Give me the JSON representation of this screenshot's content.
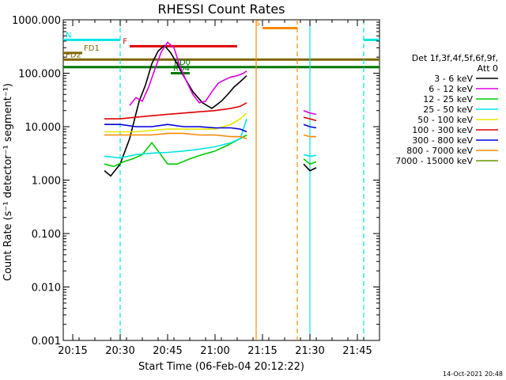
{
  "chart_data": {
    "type": "line",
    "title": "RHESSI Count Rates",
    "xlabel": "Start Time (06-Feb-04 20:12:22)",
    "ylabel": "Count Rate (s⁻¹ detector⁻¹ segment⁻¹)",
    "y_scale": "log",
    "xlim": [
      "20:12",
      "21:52"
    ],
    "ylim": [
      0.001,
      1000
    ],
    "x_ticks": [
      "20:15",
      "20:30",
      "20:45",
      "21:00",
      "21:15",
      "21:30",
      "21:45"
    ],
    "y_ticks": [
      "0.001",
      "0.010",
      "0.100",
      "1.000",
      "10.000",
      "100.000",
      "1000.000"
    ],
    "timestamp": "14-Oct-2021 20:48",
    "legend": {
      "header": "Det 1f,3f,4f,5f,6f,9f,",
      "header2": "Att 0",
      "entries": [
        {
          "label": "3 - 6 keV",
          "color": "#000000"
        },
        {
          "label": "6 - 12 keV",
          "color": "#e000e0"
        },
        {
          "label": "12 - 25 keV",
          "color": "#00cc00"
        },
        {
          "label": "25 - 50 keV",
          "color": "#00e5e5"
        },
        {
          "label": "50 - 100 keV",
          "color": "#e5e500"
        },
        {
          "label": "100 - 300 keV",
          "color": "#e00000"
        },
        {
          "label": "300 - 800 keV",
          "color": "#0000dd"
        },
        {
          "label": "800 - 7000 keV",
          "color": "#ff8800"
        },
        {
          "label": "7000 - 15000 keV",
          "color": "#669900"
        }
      ]
    },
    "series": [
      {
        "name": "3 - 6 keV",
        "color": "#000000",
        "segments": [
          [
            [
              "20:25",
              1.5
            ],
            [
              "20:27",
              1.2
            ],
            [
              "20:30",
              2.0
            ],
            [
              "20:33",
              6
            ],
            [
              "20:36",
              30
            ],
            [
              "20:38",
              60
            ],
            [
              "20:40",
              150
            ],
            [
              "20:42",
              260
            ],
            [
              "20:44",
              330
            ],
            [
              "20:46",
              240
            ],
            [
              "20:48",
              150
            ],
            [
              "20:50",
              90
            ],
            [
              "20:53",
              45
            ],
            [
              "20:56",
              28
            ],
            [
              "20:59",
              22
            ],
            [
              "21:02",
              30
            ],
            [
              "21:04",
              40
            ],
            [
              "21:06",
              55
            ],
            [
              "21:08",
              70
            ],
            [
              "21:10",
              90
            ]
          ],
          [
            [
              "21:28",
              2.0
            ],
            [
              "21:30",
              1.5
            ],
            [
              "21:32",
              1.7
            ]
          ]
        ]
      },
      {
        "name": "6 - 12 keV",
        "color": "#e000e0",
        "segments": [
          [
            [
              "20:33",
              25
            ],
            [
              "20:35",
              35
            ],
            [
              "20:37",
              30
            ],
            [
              "20:39",
              55
            ],
            [
              "20:41",
              120
            ],
            [
              "20:43",
              250
            ],
            [
              "20:45",
              380
            ],
            [
              "20:47",
              300
            ],
            [
              "20:49",
              130
            ],
            [
              "20:51",
              70
            ],
            [
              "20:53",
              40
            ],
            [
              "20:55",
              28
            ],
            [
              "20:57",
              30
            ],
            [
              "20:59",
              45
            ],
            [
              "21:01",
              65
            ],
            [
              "21:03",
              75
            ],
            [
              "21:05",
              85
            ],
            [
              "21:07",
              90
            ],
            [
              "21:09",
              100
            ],
            [
              "21:10",
              110
            ]
          ],
          [
            [
              "21:28",
              20
            ],
            [
              "21:30",
              18
            ],
            [
              "21:32",
              17
            ]
          ]
        ]
      },
      {
        "name": "12 - 25 keV",
        "color": "#00cc00",
        "segments": [
          [
            [
              "20:25",
              2.0
            ],
            [
              "20:28",
              1.8
            ],
            [
              "20:31",
              2.2
            ],
            [
              "20:34",
              2.5
            ],
            [
              "20:37",
              3.0
            ],
            [
              "20:40",
              5
            ],
            [
              "20:42",
              3.5
            ],
            [
              "20:45",
              2.0
            ],
            [
              "20:48",
              2.0
            ],
            [
              "20:52",
              2.5
            ],
            [
              "20:56",
              3.0
            ],
            [
              "21:00",
              3.5
            ],
            [
              "21:04",
              4.5
            ],
            [
              "21:08",
              6
            ],
            [
              "21:10",
              7
            ]
          ],
          [
            [
              "21:28",
              2.5
            ],
            [
              "21:30",
              2.0
            ],
            [
              "21:32",
              2.2
            ]
          ]
        ]
      },
      {
        "name": "25 - 50 keV",
        "color": "#00e5e5",
        "segments": [
          [
            [
              "20:25",
              2.8
            ],
            [
              "20:30",
              2.6
            ],
            [
              "20:35",
              3.0
            ],
            [
              "20:40",
              3.2
            ],
            [
              "20:45",
              3.3
            ],
            [
              "20:50",
              3.5
            ],
            [
              "20:55",
              3.8
            ],
            [
              "21:00",
              4.2
            ],
            [
              "21:05",
              5.0
            ],
            [
              "21:08",
              6.0
            ],
            [
              "21:10",
              14
            ]
          ],
          [
            [
              "21:28",
              3.0
            ],
            [
              "21:30",
              2.8
            ],
            [
              "21:32",
              2.9
            ]
          ]
        ]
      },
      {
        "name": "50 - 100 keV",
        "color": "#e5e500",
        "segments": [
          [
            [
              "20:25",
              8
            ],
            [
              "20:35",
              8
            ],
            [
              "20:45",
              9
            ],
            [
              "20:55",
              9
            ],
            [
              "21:00",
              9
            ],
            [
              "21:05",
              11
            ],
            [
              "21:08",
              14
            ],
            [
              "21:10",
              18
            ]
          ]
        ]
      },
      {
        "name": "100 - 300 keV",
        "color": "#e00000",
        "segments": [
          [
            [
              "20:25",
              14
            ],
            [
              "20:30",
              14
            ],
            [
              "20:35",
              15
            ],
            [
              "20:40",
              16
            ],
            [
              "20:45",
              17
            ],
            [
              "20:50",
              18
            ],
            [
              "20:55",
              19
            ],
            [
              "21:00",
              20
            ],
            [
              "21:05",
              22
            ],
            [
              "21:08",
              24
            ],
            [
              "21:10",
              28
            ]
          ],
          [
            [
              "21:28",
              15
            ],
            [
              "21:30",
              14
            ],
            [
              "21:32",
              13
            ]
          ]
        ]
      },
      {
        "name": "300 - 800 keV",
        "color": "#0000dd",
        "segments": [
          [
            [
              "20:25",
              11
            ],
            [
              "20:30",
              11
            ],
            [
              "20:35",
              10
            ],
            [
              "20:40",
              10
            ],
            [
              "20:45",
              11
            ],
            [
              "20:50",
              10
            ],
            [
              "20:55",
              10
            ],
            [
              "21:00",
              9.5
            ],
            [
              "21:05",
              9.5
            ],
            [
              "21:08",
              9
            ],
            [
              "21:10",
              8
            ]
          ],
          [
            [
              "21:28",
              11
            ],
            [
              "21:30",
              10
            ],
            [
              "21:32",
              9.5
            ]
          ]
        ]
      },
      {
        "name": "800 - 7000 keV",
        "color": "#ff8800",
        "segments": [
          [
            [
              "20:25",
              7
            ],
            [
              "20:30",
              7
            ],
            [
              "20:35",
              7
            ],
            [
              "20:40",
              7
            ],
            [
              "20:45",
              7.5
            ],
            [
              "20:50",
              7.5
            ],
            [
              "20:55",
              7
            ],
            [
              "21:00",
              7
            ],
            [
              "21:05",
              6.5
            ],
            [
              "21:08",
              6.5
            ],
            [
              "21:10",
              6
            ]
          ],
          [
            [
              "21:28",
              7
            ],
            [
              "21:30",
              6.5
            ],
            [
              "21:32",
              6.5
            ]
          ]
        ]
      }
    ],
    "flag_bars": [
      {
        "label": "N",
        "color": "#00e5e5",
        "y": 420,
        "x1": "20:12",
        "x2": "20:30"
      },
      {
        "label": "",
        "color": "#00e5e5",
        "y": 420,
        "x1": "21:47",
        "x2": "21:52"
      },
      {
        "label": "F",
        "color": "#e00000",
        "y": 320,
        "x1": "20:33",
        "x2": "21:07"
      },
      {
        "label": "S",
        "color": "#ff8800",
        "y": 700,
        "x1": "21:15",
        "x2": "21:26"
      },
      {
        "label": "FD1",
        "color": "#806600",
        "y": 240,
        "x1": "20:12",
        "x2": "20:18"
      },
      {
        "label": "FD2",
        "color": "#806600",
        "y": 180,
        "x1": "20:12",
        "x2": "21:52"
      },
      {
        "label": "RD0",
        "color": "#007700",
        "y": 130,
        "x1": "20:12",
        "x2": "21:52"
      },
      {
        "label": "RD4",
        "color": "#007700",
        "y": 100,
        "x1": "20:46",
        "x2": "20:52"
      }
    ],
    "vlines": [
      {
        "x": "20:30",
        "color": "#00e5e5",
        "dash": true
      },
      {
        "x": "21:13",
        "color": "#ff8800",
        "dash": false
      },
      {
        "x": "21:26",
        "color": "#ff8800",
        "dash": true
      },
      {
        "x": "21:30",
        "color": "#00e5e5",
        "dash": false
      },
      {
        "x": "21:47",
        "color": "#00e5e5",
        "dash": true
      }
    ]
  }
}
